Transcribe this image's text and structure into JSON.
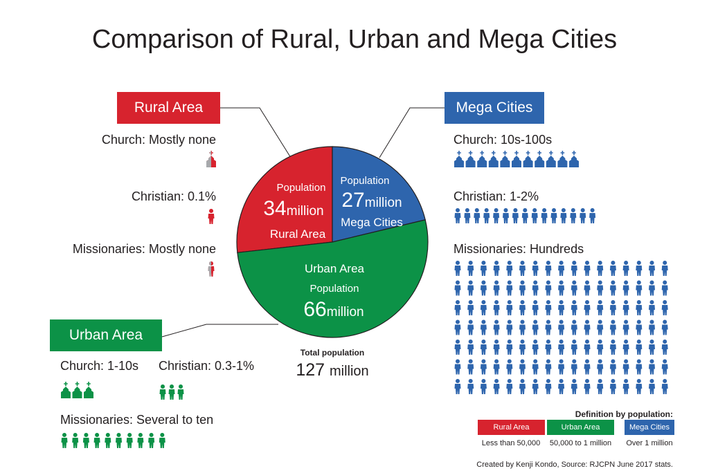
{
  "title": "Comparison of Rural, Urban and Mega Cities",
  "colors": {
    "rural": "#d7232e",
    "urban": "#0c9247",
    "mega": "#2e65ad",
    "ghost": "#a7a9ac",
    "line": "#231f20"
  },
  "rural": {
    "header": "Rural Area",
    "church": "Church:  Mostly none",
    "christian": "Christian:  0.1%",
    "missionaries": "Missionaries: Mostly none"
  },
  "urban": {
    "header": "Urban Area",
    "church": "Church:  1-10s",
    "christian": "Christian:  0.3-1%",
    "missionaries": "Missionaries: Several to ten"
  },
  "mega": {
    "header": "Mega Cities",
    "church": "Church:  10s-100s",
    "christian": "Christian:  1-2%",
    "missionaries": "Missionaries: Hundreds"
  },
  "icon_counts": {
    "rural_church": 1,
    "rural_christian": 1,
    "rural_missionaries": 1,
    "urban_church": 3,
    "urban_christian": 3,
    "urban_missionaries": 10,
    "mega_church": 11,
    "mega_christian": 15,
    "mega_missionaries": 119
  },
  "chart_data": {
    "type": "pie",
    "slices": [
      {
        "name": "Rural Area",
        "label": "Population",
        "value": 34,
        "value_text": "34",
        "unit": "million",
        "color": "#d7232e"
      },
      {
        "name": "Mega Cities",
        "label": "Population",
        "value": 27,
        "value_text": "27",
        "unit": "million",
        "color": "#2e65ad"
      },
      {
        "name": "Urban Area",
        "label": "Population",
        "value": 66,
        "value_text": "66",
        "unit": "million",
        "color": "#0c9247"
      }
    ],
    "total_label": "Total population",
    "total_value": "127",
    "total_unit": "million"
  },
  "legend": {
    "title": "Definition by population:",
    "items": [
      {
        "label": "Rural Area",
        "desc": "Less than 50,000",
        "color": "#d7232e"
      },
      {
        "label": "Urban Area",
        "desc": "50,000 to 1 million",
        "color": "#0c9247"
      },
      {
        "label": "Mega Cities",
        "desc": "Over 1 million",
        "color": "#2e65ad"
      }
    ]
  },
  "credit": "Created by Kenji Kondo, Source: RJCPN June 2017 stats."
}
